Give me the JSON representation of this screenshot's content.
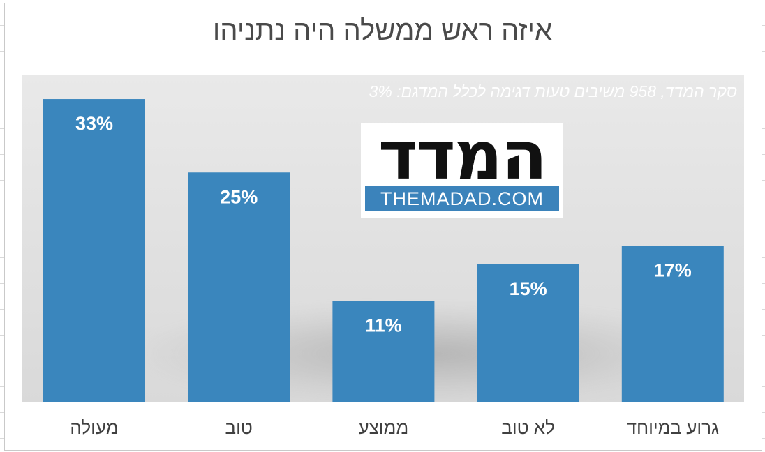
{
  "chart_data": {
    "type": "bar",
    "title": "איזה ראש ממשלה היה נתניהו",
    "subtitle": "סקר המדד, 958 משיבים  טעות דגימה לכלל המדגם: 3%",
    "categories": [
      "מעולה",
      "טוב",
      "ממוצע",
      "לא טוב",
      "גרוע במיוחד"
    ],
    "values": [
      33,
      25,
      11,
      15,
      17
    ],
    "value_labels": [
      "33%",
      "25%",
      "11%",
      "15%",
      "17%"
    ],
    "ylim": [
      0,
      36
    ],
    "grid": false,
    "legend": "none",
    "colors": {
      "bar": "#3a86bd",
      "plot_background": "#e3e3e3"
    }
  },
  "logo": {
    "word": "המדד",
    "url": "THEMADAD.COM"
  }
}
